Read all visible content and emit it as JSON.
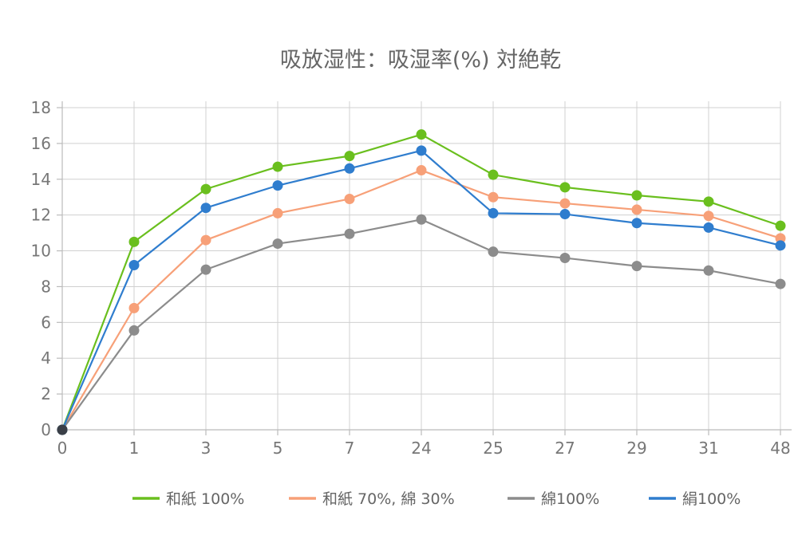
{
  "chart_data": {
    "type": "line",
    "title": "吸放湿性：吸湿率(%) 対絶乾",
    "xlabel": "",
    "ylabel": "",
    "categories": [
      "0",
      "1",
      "3",
      "5",
      "7",
      "24",
      "25",
      "27",
      "29",
      "31",
      "48"
    ],
    "ylim": [
      0,
      18
    ],
    "yticks": [
      0,
      2,
      4,
      6,
      8,
      10,
      12,
      14,
      16,
      18
    ],
    "grid": true,
    "legend_position": "bottom",
    "series": [
      {
        "name": "和紙 100%",
        "color": "#6abf1e",
        "values": [
          0,
          10.5,
          13.45,
          14.7,
          15.3,
          16.5,
          14.25,
          13.55,
          13.1,
          12.75,
          11.4
        ]
      },
      {
        "name": "和紙 70%, 綿 30%",
        "color": "#f7a078",
        "values": [
          0,
          6.8,
          10.6,
          12.1,
          12.9,
          14.5,
          13.0,
          12.65,
          12.3,
          11.95,
          10.7
        ]
      },
      {
        "name": "綿100%",
        "color": "#8c8c8c",
        "values": [
          0,
          5.55,
          8.95,
          10.4,
          10.95,
          11.75,
          9.95,
          9.6,
          9.15,
          8.9,
          8.15
        ]
      },
      {
        "name": "絹100%",
        "color": "#2f7dce",
        "values": [
          0,
          9.2,
          12.4,
          13.65,
          14.6,
          15.6,
          12.1,
          12.05,
          11.55,
          11.3,
          10.3
        ]
      }
    ],
    "origin_marker_color": "#3a3f47"
  }
}
